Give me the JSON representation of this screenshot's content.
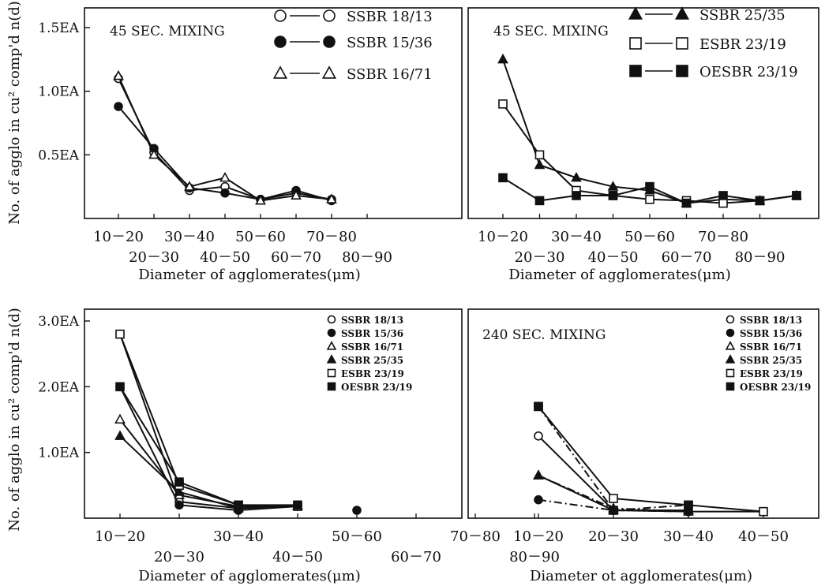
{
  "ylabel": "No. of agglo in cu² comp'd n(d)",
  "xlabel": "Diameter of agglomerates(μm)",
  "xlabel_alt": "Diameter ot agglomerates(μm)",
  "series_styles": {
    "SSBR 18/13": {
      "marker": "open-circle"
    },
    "SSBR 15/36": {
      "marker": "filled-circle"
    },
    "SSBR 16/71": {
      "marker": "open-triangle"
    },
    "SSBR 25/35": {
      "marker": "filled-triangle"
    },
    "ESBR 23/19": {
      "marker": "open-square"
    },
    "OESBR 23/19": {
      "marker": "filled-square"
    }
  },
  "chart_data": [
    {
      "type": "line",
      "title": "45 SEC. MIXING",
      "ylim": [
        0,
        1.5
      ],
      "yticks": [
        {
          "value": 0.5,
          "label": "0.5EA"
        },
        {
          "value": 1.0,
          "label": "1.0EA"
        },
        {
          "value": 1.5,
          "label": "1.5EA"
        }
      ],
      "x": [
        1,
        2,
        3,
        4,
        5,
        6,
        7
      ],
      "xticks": [
        {
          "value": 1,
          "label": "10－20",
          "row": 1
        },
        {
          "value": 2,
          "label": "20－30",
          "row": 2
        },
        {
          "value": 3,
          "label": "30－40",
          "row": 1
        },
        {
          "value": 4,
          "label": "40－50",
          "row": 2
        },
        {
          "value": 5,
          "label": "50－60",
          "row": 1
        },
        {
          "value": 6,
          "label": "60－70",
          "row": 2
        },
        {
          "value": 7,
          "label": "70－80",
          "row": 1
        },
        {
          "value": 8,
          "label": "80－90",
          "row": 2
        }
      ],
      "legend_style": "line",
      "series": [
        {
          "name": "SSBR 18/13",
          "values": [
            1.1,
            0.52,
            0.22,
            0.25,
            0.15,
            0.2,
            0.15
          ]
        },
        {
          "name": "SSBR 15/36",
          "values": [
            0.88,
            0.55,
            0.24,
            0.2,
            0.15,
            0.22,
            0.14
          ]
        },
        {
          "name": "SSBR 16/71",
          "values": [
            1.12,
            0.5,
            0.25,
            0.32,
            0.14,
            0.18,
            0.15
          ]
        }
      ]
    },
    {
      "type": "line",
      "title": "45 SEC. MIXING",
      "ylim": [
        0,
        1.5
      ],
      "yticks": [],
      "x": [
        1,
        2,
        3,
        4,
        5,
        6,
        7,
        8,
        9
      ],
      "xticks": [
        {
          "value": 1,
          "label": "10－20",
          "row": 1
        },
        {
          "value": 2,
          "label": "20－30",
          "row": 2
        },
        {
          "value": 3,
          "label": "30－40",
          "row": 1
        },
        {
          "value": 4,
          "label": "40－50",
          "row": 2
        },
        {
          "value": 5,
          "label": "50－60",
          "row": 1
        },
        {
          "value": 6,
          "label": "60－70",
          "row": 2
        },
        {
          "value": 7,
          "label": "70－80",
          "row": 1
        },
        {
          "value": 8,
          "label": "80－90",
          "row": 2
        }
      ],
      "legend_style": "line",
      "series": [
        {
          "name": "SSBR 25/35",
          "values": [
            1.25,
            0.42,
            0.32,
            0.25,
            0.22,
            0.12,
            0.15,
            0.14,
            0.18
          ]
        },
        {
          "name": "ESBR 23/19",
          "values": [
            0.9,
            0.5,
            0.22,
            0.18,
            0.15,
            0.14,
            0.12,
            0.14,
            0.18
          ]
        },
        {
          "name": "OESBR 23/19",
          "values": [
            0.32,
            0.14,
            0.18,
            0.18,
            0.25,
            0.12,
            0.18,
            0.14,
            0.18
          ]
        }
      ]
    },
    {
      "type": "line",
      "title": "",
      "ylim": [
        0,
        3.0
      ],
      "yticks": [
        {
          "value": 1.0,
          "label": "1.0EA"
        },
        {
          "value": 2.0,
          "label": "2.0EA"
        },
        {
          "value": 3.0,
          "label": "3.0EA"
        }
      ],
      "x": [
        1,
        2,
        3,
        4
      ],
      "xticks": [
        {
          "value": 1,
          "label": "10－20",
          "row": 1
        },
        {
          "value": 2,
          "label": "20－30",
          "row": 2
        },
        {
          "value": 3,
          "label": "30－40",
          "row": 1
        },
        {
          "value": 4,
          "label": "40－50",
          "row": 2
        },
        {
          "value": 5,
          "label": "50－60",
          "row": 1
        },
        {
          "value": 6,
          "label": "60－70",
          "row": 2
        },
        {
          "value": 7,
          "label": "70－80",
          "row": 1
        },
        {
          "value": 8,
          "label": "80－90",
          "row": 2
        }
      ],
      "legend_style": "marker",
      "series": [
        {
          "name": "SSBR 18/13",
          "values": [
            2.8,
            0.25,
            0.15,
            0.2
          ]
        },
        {
          "name": "SSBR 15/36",
          "values": [
            2.0,
            0.2,
            0.12,
            0.18
          ]
        },
        {
          "name": "SSBR 16/71",
          "values": [
            1.5,
            0.35,
            0.18,
            0.18
          ]
        },
        {
          "name": "SSBR 25/35",
          "values": [
            1.25,
            0.4,
            0.15,
            0.18
          ]
        },
        {
          "name": "ESBR 23/19",
          "values": [
            2.8,
            0.5,
            0.2,
            0.18
          ]
        },
        {
          "name": "OESBR 23/19",
          "values": [
            2.0,
            0.55,
            0.2,
            0.2
          ]
        }
      ],
      "extra_points": [
        {
          "series": "SSBR 15/36",
          "x": 5,
          "value": 0.12
        }
      ]
    },
    {
      "type": "line",
      "title": "240 SEC. MIXING",
      "ylim": [
        0,
        3.0
      ],
      "yticks": [],
      "x": [
        1,
        2,
        3,
        4
      ],
      "xticks": [
        {
          "value": 1,
          "label": "10－20",
          "row": 1
        },
        {
          "value": 2,
          "label": "20－30",
          "row": 1
        },
        {
          "value": 3,
          "label": "30－40",
          "row": 1
        },
        {
          "value": 4,
          "label": "40－50",
          "row": 1
        }
      ],
      "legend_style": "marker",
      "series": [
        {
          "name": "SSBR 18/13",
          "values": [
            1.25,
            0.12,
            0.1,
            0.1
          ]
        },
        {
          "name": "SSBR 15/36",
          "values": [
            0.28,
            0.12,
            0.1,
            null
          ]
        },
        {
          "name": "SSBR 16/71",
          "values": [
            0.65,
            0.12,
            0.12,
            null
          ]
        },
        {
          "name": "SSBR 25/35",
          "values": [
            0.65,
            0.15,
            0.1,
            null
          ]
        },
        {
          "name": "ESBR 23/19",
          "values": [
            1.7,
            0.3,
            0.2,
            0.1
          ]
        },
        {
          "name": "OESBR 23/19",
          "values": [
            1.7,
            0.12,
            0.2,
            null
          ]
        }
      ]
    }
  ]
}
